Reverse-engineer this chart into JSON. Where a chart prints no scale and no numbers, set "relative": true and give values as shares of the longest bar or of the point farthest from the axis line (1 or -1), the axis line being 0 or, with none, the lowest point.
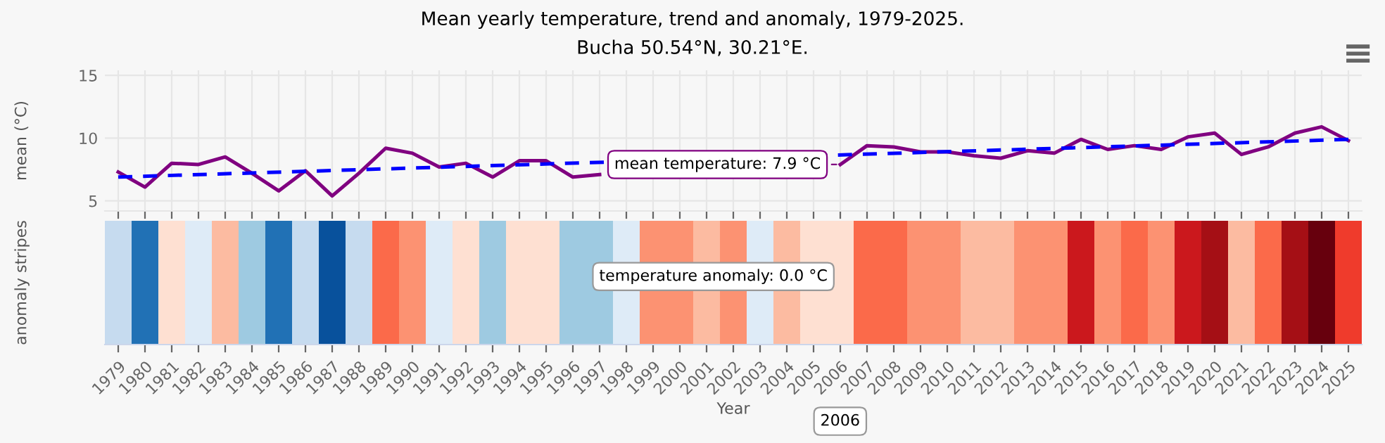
{
  "chart_data": [
    {
      "type": "line",
      "title": "Mean yearly temperature, trend and anomaly, 1979-2025.",
      "subtitle": "Bucha 50.54°N, 30.21°E.",
      "ylabel": "mean (°C)",
      "xlim": [
        1978.5,
        2025.5
      ],
      "xticks": [
        1979,
        1980,
        1981,
        1982,
        1983,
        1984,
        1985,
        1986,
        1987,
        1988,
        1989,
        1990,
        1991,
        1992,
        1993,
        1994,
        1995,
        1996,
        1997,
        1998,
        1999,
        2000,
        2001,
        2002,
        2003,
        2004,
        2005,
        2006,
        2007,
        2008,
        2009,
        2010,
        2011,
        2012,
        2013,
        2014,
        2015,
        2016,
        2017,
        2018,
        2019,
        2020,
        2021,
        2022,
        2023,
        2024,
        2025
      ],
      "ylim": [
        4.2,
        15.4
      ],
      "yticks": [
        5,
        10,
        15
      ],
      "grid": true,
      "tick_labels": "y",
      "series": [
        {
          "color": "#800080",
          "line_style": "solid",
          "x": [
            1979,
            1980,
            1981,
            1982,
            1983,
            1984,
            1985,
            1986,
            1987,
            1988,
            1989,
            1990,
            1991,
            1992,
            1993,
            1994,
            1995,
            1996,
            1997,
            1998,
            1999,
            2000,
            2001,
            2002,
            2003,
            2004,
            2005,
            2006,
            2007,
            2008,
            2009,
            2010,
            2011,
            2012,
            2013,
            2014,
            2015,
            2016,
            2017,
            2018,
            2019,
            2020,
            2021,
            2022,
            2023,
            2024,
            2025
          ],
          "values": [
            7.3,
            6.1,
            8.0,
            7.9,
            8.5,
            7.2,
            5.8,
            7.4,
            5.4,
            7.2,
            9.2,
            8.8,
            7.7,
            8.0,
            6.9,
            8.2,
            8.2,
            6.9,
            7.1,
            null,
            null,
            null,
            null,
            null,
            null,
            null,
            null,
            7.9,
            9.4,
            9.3,
            8.9,
            8.9,
            8.6,
            8.4,
            9.0,
            8.8,
            9.9,
            9.1,
            9.4,
            9.1,
            10.1,
            10.4,
            8.7,
            9.3,
            10.4,
            10.9,
            9.8
          ]
        },
        {
          "color": "#0000ff",
          "line_style": "dashed",
          "x": [
            1979,
            2025
          ],
          "values": [
            6.9,
            9.9
          ]
        }
      ],
      "annotations": [
        {
          "text": "mean temperature: 7.9 °C",
          "x": 2006,
          "y": 7.9
        }
      ]
    },
    {
      "type": "bar",
      "relative": true,
      "ylabel": "anomaly stripes",
      "xlabel": "Year",
      "tick_labels": "x",
      "categories": [
        "1979",
        "1980",
        "1981",
        "1982",
        "1983",
        "1984",
        "1985",
        "1986",
        "1987",
        "1988",
        "1989",
        "1990",
        "1991",
        "1992",
        "1993",
        "1994",
        "1995",
        "1996",
        "1997",
        "1998",
        "1999",
        "2000",
        "2001",
        "2002",
        "2003",
        "2004",
        "2005",
        "2006",
        "2007",
        "2008",
        "2009",
        "2010",
        "2011",
        "2012",
        "2013",
        "2014",
        "2015",
        "2016",
        "2017",
        "2018",
        "2019",
        "2020",
        "2021",
        "2022",
        "2023",
        "2024",
        "2025"
      ],
      "values": [
        1,
        1,
        1,
        1,
        1,
        1,
        1,
        1,
        1,
        1,
        1,
        1,
        1,
        1,
        1,
        1,
        1,
        1,
        1,
        1,
        1,
        1,
        1,
        1,
        1,
        1,
        1,
        1,
        1,
        1,
        1,
        1,
        1,
        1,
        1,
        1,
        1,
        1,
        1,
        1,
        1,
        1,
        1,
        1,
        1,
        1,
        1
      ],
      "colors": [
        "#c6dbef",
        "#2171b5",
        "#fee0d2",
        "#deebf7",
        "#fcbba1",
        "#9ecae1",
        "#2171b5",
        "#c6dbef",
        "#08519c",
        "#c6dbef",
        "#fb6a4a",
        "#fc9272",
        "#deebf7",
        "#fee0d2",
        "#9ecae1",
        "#fee0d2",
        "#fee0d2",
        "#9ecae1",
        "#9ecae1",
        "#deebf7",
        "#fc9272",
        "#fc9272",
        "#fcbba1",
        "#fc9272",
        "#deebf7",
        "#fcbba1",
        "#fee0d2",
        "#fee0d2",
        "#fb6a4a",
        "#fb6a4a",
        "#fc9272",
        "#fc9272",
        "#fcbba1",
        "#fcbba1",
        "#fc9272",
        "#fc9272",
        "#cb181d",
        "#fc9272",
        "#fb6a4a",
        "#fc9272",
        "#cb181d",
        "#a50f15",
        "#fcbba1",
        "#fb6a4a",
        "#a50f15",
        "#67000d",
        "#ef3b2c"
      ],
      "annotations": [
        "temperature anomaly: 0.0 °C",
        "2006"
      ]
    }
  ]
}
